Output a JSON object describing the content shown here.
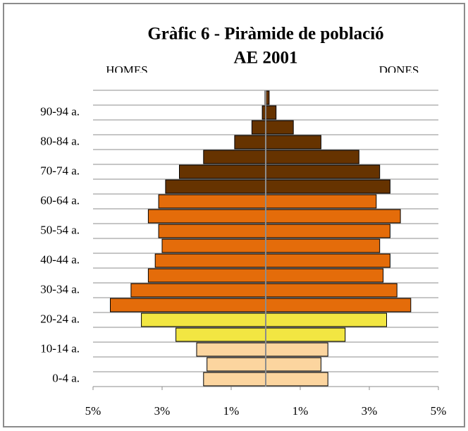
{
  "chart_data": {
    "type": "pyramid",
    "title": "Gràfic 6 - Piràmide de població",
    "subtitle": "AE 2001",
    "categories": [
      "0-4 a.",
      null,
      "10-14 a.",
      null,
      "20-24 a.",
      null,
      "30-34 a.",
      null,
      "40-44 a.",
      null,
      "50-54 a.",
      null,
      "60-64 a.",
      null,
      "70-74 a.",
      null,
      "80-84 a.",
      null,
      "90-94 a.",
      null
    ],
    "colors": [
      "#fcd59f",
      "#fcd59f",
      "#fcd59f",
      "#f2e642",
      "#f2e642",
      "#e46c0a",
      "#e46c0a",
      "#e46c0a",
      "#e46c0a",
      "#e46c0a",
      "#e46c0a",
      "#e46c0a",
      "#e46c0a",
      "#663300",
      "#663300",
      "#663300",
      "#663300",
      "#663300",
      "#663300",
      "#663300"
    ],
    "series": [
      {
        "name": "HOMES",
        "values": [
          -1.8,
          -1.7,
          -2.0,
          -2.6,
          -3.6,
          -4.5,
          -3.9,
          -3.4,
          -3.2,
          -3.0,
          -3.1,
          -3.4,
          -3.1,
          -2.9,
          -2.5,
          -1.8,
          -0.9,
          -0.4,
          -0.1,
          -0.02
        ]
      },
      {
        "name": "DONES",
        "values": [
          1.8,
          1.6,
          1.8,
          2.3,
          3.5,
          4.2,
          3.8,
          3.4,
          3.6,
          3.3,
          3.6,
          3.9,
          3.2,
          3.6,
          3.3,
          2.7,
          1.6,
          0.8,
          0.3,
          0.1
        ]
      }
    ],
    "xlim": [
      -5,
      5
    ],
    "xticks": [
      {
        "value": -5,
        "label": "5%"
      },
      {
        "value": -3,
        "label": "3%"
      },
      {
        "value": -1,
        "label": "1%"
      },
      {
        "value": 1,
        "label": "1%"
      },
      {
        "value": 3,
        "label": "3%"
      },
      {
        "value": 5,
        "label": "5%"
      }
    ],
    "grid": true
  }
}
